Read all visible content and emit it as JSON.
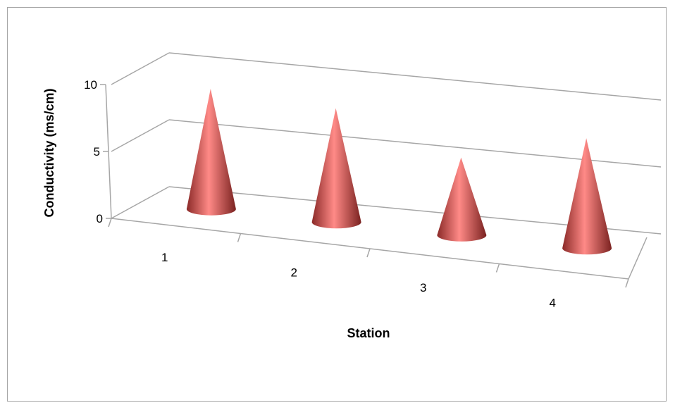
{
  "chart_data": {
    "type": "bar",
    "bar_shape": "cone",
    "view": "3d",
    "categories": [
      "1",
      "2",
      "3",
      "4"
    ],
    "series": [
      {
        "values": [
          9.3,
          8.8,
          6.0,
          8.5
        ]
      }
    ],
    "xlabel": "Station",
    "ylabel": "Conductivity (ms/cm)",
    "ylim": [
      0,
      10
    ],
    "yticks": [
      "0",
      "5",
      "10"
    ],
    "grid": true,
    "legend": "none",
    "colors": {
      "cone": "#c0504d",
      "cone_highlight": "#ff8a87",
      "cone_shadow": "#8b2a28",
      "grid": "#a6a6a6"
    }
  }
}
